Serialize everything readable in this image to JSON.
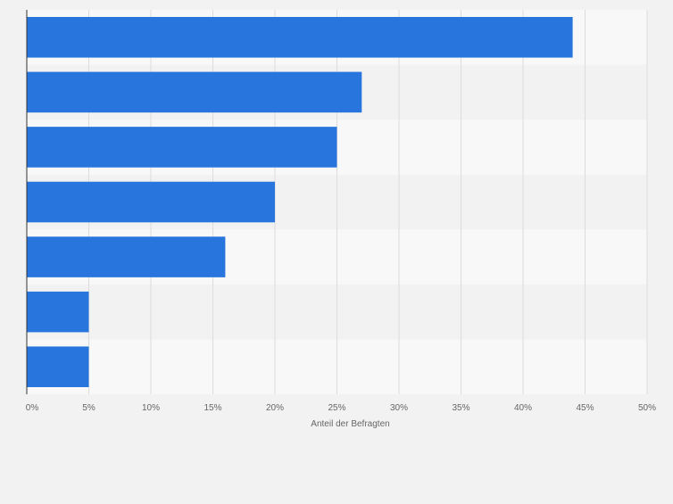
{
  "chart_data": {
    "type": "bar",
    "orientation": "horizontal",
    "categories": [
      "",
      "",
      "",
      "",
      "",
      "",
      ""
    ],
    "values": [
      44,
      27,
      25,
      20,
      16,
      5,
      5
    ],
    "xlabel": "Anteil der Befragten",
    "ylabel": "",
    "xlim": [
      0,
      50
    ],
    "xticks": [
      0,
      5,
      10,
      15,
      20,
      25,
      30,
      35,
      40,
      45,
      50
    ],
    "xtick_labels": [
      "0%",
      "5%",
      "10%",
      "15%",
      "20%",
      "25%",
      "30%",
      "35%",
      "40%",
      "45%",
      "50%"
    ],
    "grid": true,
    "legend": "none"
  },
  "colors": {
    "bar": "#2876dd",
    "background": "#f2f2f2",
    "band_light": "#f8f8f8",
    "band_dark": "#f2f2f2",
    "grid": "#dcdcdc",
    "axis": "#333333"
  }
}
